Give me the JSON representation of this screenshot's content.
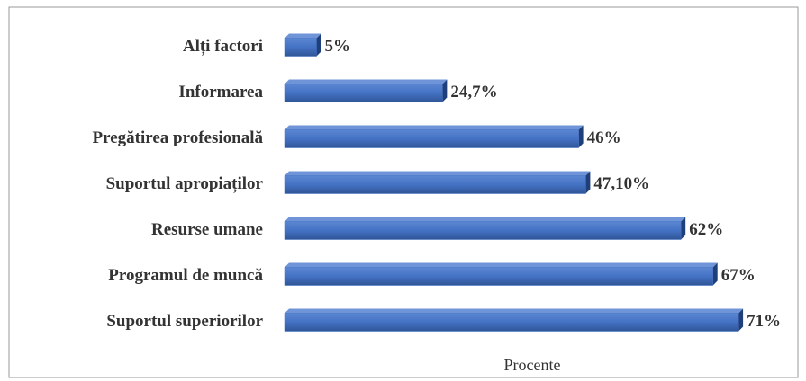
{
  "chart_data": {
    "type": "bar",
    "orientation": "horizontal",
    "categories": [
      "Alți factori",
      "Informarea ",
      "Pregătirea profesională",
      "Suportul apropiaților",
      "Resurse umane",
      "Programul de muncă",
      "Suportul superiorilor"
    ],
    "values": [
      5,
      24.7,
      46,
      47.1,
      62,
      67,
      71
    ],
    "value_labels": [
      "5%",
      "24,7%",
      "46%",
      "47,10%",
      "62%",
      "67%",
      "71%"
    ],
    "color": "#4472c4",
    "xlabel": "Procente",
    "xlim": [
      0,
      80
    ]
  }
}
